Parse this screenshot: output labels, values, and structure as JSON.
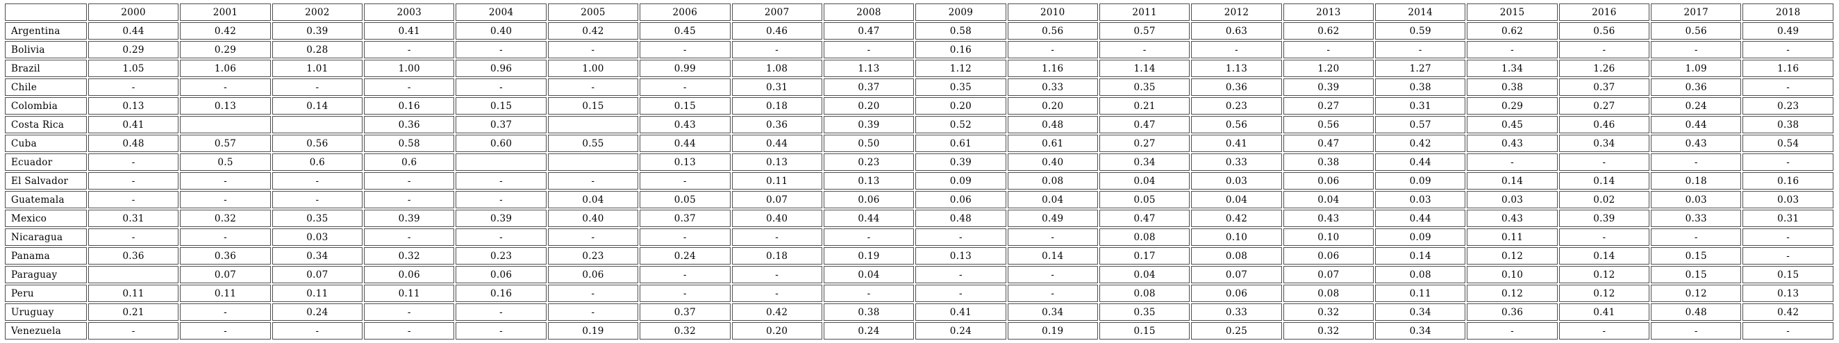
{
  "chart_data": {
    "type": "table",
    "title": "",
    "columns": [
      "",
      "2000",
      "2001",
      "2002",
      "2003",
      "2004",
      "2005",
      "2006",
      "2007",
      "2008",
      "2009",
      "2010",
      "2011",
      "2012",
      "2013",
      "2014",
      "2015",
      "2016",
      "2017",
      "2018"
    ],
    "row_header_label": "",
    "missing_marker": "-",
    "empty_marker": "",
    "rows": [
      {
        "label": "Argentina",
        "values": [
          "0.44",
          "0.42",
          "0.39",
          "0.41",
          "0.40",
          "0.42",
          "0.45",
          "0.46",
          "0.47",
          "0.58",
          "0.56",
          "0.57",
          "0.63",
          "0.62",
          "0.59",
          "0.62",
          "0.56",
          "0.56",
          "0.49"
        ]
      },
      {
        "label": "Bolivia",
        "values": [
          "0.29",
          "0.29",
          "0.28",
          "-",
          "-",
          "-",
          "-",
          "-",
          "-",
          "0.16",
          "-",
          "-",
          "-",
          "-",
          "-",
          "-",
          "-",
          "-",
          "-"
        ]
      },
      {
        "label": "Brazil",
        "values": [
          "1.05",
          "1.06",
          "1.01",
          "1.00",
          "0.96",
          "1.00",
          "0.99",
          "1.08",
          "1.13",
          "1.12",
          "1.16",
          "1.14",
          "1.13",
          "1.20",
          "1.27",
          "1.34",
          "1.26",
          "1.09",
          "1.16"
        ]
      },
      {
        "label": "Chile",
        "values": [
          "-",
          "-",
          "-",
          "-",
          "-",
          "-",
          "-",
          "0.31",
          "0.37",
          "0.35",
          "0.33",
          "0.35",
          "0.36",
          "0.39",
          "0.38",
          "0.38",
          "0.37",
          "0.36",
          "-"
        ]
      },
      {
        "label": "Colombia",
        "values": [
          "0.13",
          "0.13",
          "0.14",
          "0.16",
          "0.15",
          "0.15",
          "0.15",
          "0.18",
          "0.20",
          "0.20",
          "0.20",
          "0.21",
          "0.23",
          "0.27",
          "0.31",
          "0.29",
          "0.27",
          "0.24",
          "0.23"
        ]
      },
      {
        "label": "Costa Rica",
        "values": [
          "0.41",
          "",
          "",
          "0.36",
          "0.37",
          "",
          "0.43",
          "0.36",
          "0.39",
          "0.52",
          "0.48",
          "0.47",
          "0.56",
          "0.56",
          "0.57",
          "0.45",
          "0.46",
          "0.44",
          "0.38"
        ]
      },
      {
        "label": "Cuba",
        "values": [
          "0.48",
          "0.57",
          "0.56",
          "0.58",
          "0.60",
          "0.55",
          "0.44",
          "0.44",
          "0.50",
          "0.61",
          "0.61",
          "0.27",
          "0.41",
          "0.47",
          "0.42",
          "0.43",
          "0.34",
          "0.43",
          "0.54"
        ]
      },
      {
        "label": "Ecuador",
        "values": [
          "-",
          "0.5",
          "0.6",
          "0.6",
          "",
          "",
          "0.13",
          "0.13",
          "0.23",
          "0.39",
          "0.40",
          "0.34",
          "0.33",
          "0.38",
          "0.44",
          "-",
          "-",
          "-",
          "-"
        ]
      },
      {
        "label": "El Salvador",
        "values": [
          "-",
          "-",
          "-",
          "-",
          "-",
          "-",
          "-",
          "0.11",
          "0.13",
          "0.09",
          "0.08",
          "0.04",
          "0.03",
          "0.06",
          "0.09",
          "0.14",
          "0.14",
          "0.18",
          "0.16"
        ]
      },
      {
        "label": "Guatemala",
        "values": [
          "-",
          "-",
          "-",
          "-",
          "-",
          "0.04",
          "0.05",
          "0.07",
          "0.06",
          "0.06",
          "0.04",
          "0.05",
          "0.04",
          "0.04",
          "0.03",
          "0.03",
          "0.02",
          "0.03",
          "0.03"
        ]
      },
      {
        "label": "Mexico",
        "values": [
          "0.31",
          "0.32",
          "0.35",
          "0.39",
          "0.39",
          "0.40",
          "0.37",
          "0.40",
          "0.44",
          "0.48",
          "0.49",
          "0.47",
          "0.42",
          "0.43",
          "0.44",
          "0.43",
          "0.39",
          "0.33",
          "0.31"
        ]
      },
      {
        "label": "Nicaragua",
        "values": [
          "-",
          "-",
          "0.03",
          "-",
          "-",
          "-",
          "-",
          "-",
          "-",
          "-",
          "-",
          "0.08",
          "0.10",
          "0.10",
          "0.09",
          "0.11",
          "-",
          "-",
          "-"
        ]
      },
      {
        "label": "Panama",
        "values": [
          "0.36",
          "0.36",
          "0.34",
          "0.32",
          "0.23",
          "0.23",
          "0.24",
          "0.18",
          "0.19",
          "0.13",
          "0.14",
          "0.17",
          "0.08",
          "0.06",
          "0.14",
          "0.12",
          "0.14",
          "0.15",
          "-"
        ]
      },
      {
        "label": "Paraguay",
        "values": [
          "",
          "0.07",
          "0.07",
          "0.06",
          "0.06",
          "0.06",
          "-",
          "-",
          "0.04",
          "-",
          "-",
          "0.04",
          "0.07",
          "0.07",
          "0.08",
          "0.10",
          "0.12",
          "0.15",
          "0.15"
        ]
      },
      {
        "label": "Peru",
        "values": [
          "0.11",
          "0.11",
          "0.11",
          "0.11",
          "0.16",
          "-",
          "-",
          "-",
          "-",
          "-",
          "-",
          "0.08",
          "0.06",
          "0.08",
          "0.11",
          "0.12",
          "0.12",
          "0.12",
          "0.13"
        ]
      },
      {
        "label": "Uruguay",
        "values": [
          "0.21",
          "-",
          "0.24",
          "-",
          "-",
          "-",
          "0.37",
          "0.42",
          "0.38",
          "0.41",
          "0.34",
          "0.35",
          "0.33",
          "0.32",
          "0.34",
          "0.36",
          "0.41",
          "0.48",
          "0.42"
        ]
      },
      {
        "label": "Venezuela",
        "values": [
          "-",
          "-",
          "-",
          "-",
          "-",
          "0.19",
          "0.32",
          "0.20",
          "0.24",
          "0.24",
          "0.19",
          "0.15",
          "0.25",
          "0.32",
          "0.34",
          "-",
          "-",
          "-",
          "-"
        ]
      }
    ],
    "layout": {
      "header_row": true,
      "grid": true,
      "cell_border_color": "#4c4c4c",
      "background_color": "#ffffff",
      "text_color": "#000000"
    }
  }
}
